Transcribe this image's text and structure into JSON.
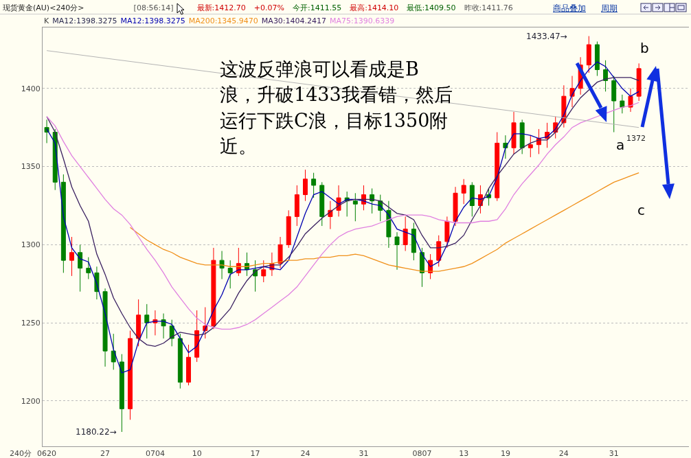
{
  "chart_data": {
    "type": "candlestick",
    "title": "现货黄金(AU)<240分>",
    "categories": [
      "0620",
      null,
      null,
      null,
      null,
      null,
      null,
      "27",
      null,
      null,
      null,
      null,
      null,
      "0704",
      null,
      null,
      null,
      null,
      "10",
      null,
      null,
      null,
      null,
      null,
      null,
      "17",
      null,
      null,
      null,
      null,
      null,
      "24",
      null,
      null,
      null,
      null,
      null,
      null,
      "31",
      null,
      null,
      null,
      null,
      null,
      null,
      "0807",
      null,
      null,
      null,
      null,
      "13",
      null,
      null,
      null,
      null,
      "19",
      null,
      null,
      null,
      null,
      null,
      null,
      "24",
      null,
      null,
      null,
      null,
      null,
      "31",
      null,
      null,
      null
    ],
    "ohlc": [
      [
        1375,
        1380,
        1365,
        1372
      ],
      [
        1372,
        1374,
        1335,
        1340
      ],
      [
        1340,
        1345,
        1282,
        1290
      ],
      [
        1290,
        1305,
        1280,
        1295
      ],
      [
        1295,
        1300,
        1270,
        1285
      ],
      [
        1285,
        1292,
        1278,
        1282
      ],
      [
        1282,
        1286,
        1265,
        1270
      ],
      [
        1270,
        1272,
        1222,
        1232
      ],
      [
        1232,
        1243,
        1220,
        1225
      ],
      [
        1225,
        1230,
        1180.22,
        1195
      ],
      [
        1195,
        1245,
        1188,
        1240
      ],
      [
        1240,
        1265,
        1235,
        1255
      ],
      [
        1255,
        1262,
        1240,
        1250
      ],
      [
        1250,
        1258,
        1242,
        1252
      ],
      [
        1252,
        1256,
        1240,
        1248
      ],
      [
        1248,
        1252,
        1235,
        1240
      ],
      [
        1240,
        1243,
        1208,
        1212
      ],
      [
        1212,
        1236,
        1210,
        1228
      ],
      [
        1228,
        1258,
        1225,
        1245
      ],
      [
        1245,
        1260,
        1240,
        1248
      ],
      [
        1248,
        1298,
        1246,
        1290
      ],
      [
        1290,
        1296,
        1278,
        1285
      ],
      [
        1285,
        1290,
        1272,
        1282
      ],
      [
        1282,
        1298,
        1280,
        1288
      ],
      [
        1288,
        1295,
        1280,
        1284
      ],
      [
        1284,
        1290,
        1270,
        1280
      ],
      [
        1280,
        1290,
        1276,
        1284
      ],
      [
        1284,
        1295,
        1280,
        1288
      ],
      [
        1288,
        1305,
        1285,
        1300
      ],
      [
        1300,
        1322,
        1298,
        1318
      ],
      [
        1318,
        1338,
        1312,
        1332
      ],
      [
        1332,
        1348,
        1328,
        1342
      ],
      [
        1342,
        1346,
        1330,
        1338
      ],
      [
        1338,
        1340,
        1312,
        1318
      ],
      [
        1318,
        1328,
        1310,
        1322
      ],
      [
        1322,
        1338,
        1318,
        1330
      ],
      [
        1330,
        1334,
        1318,
        1328
      ],
      [
        1328,
        1333,
        1315,
        1326
      ],
      [
        1326,
        1338,
        1322,
        1332
      ],
      [
        1332,
        1336,
        1320,
        1328
      ],
      [
        1328,
        1332,
        1315,
        1322
      ],
      [
        1322,
        1328,
        1298,
        1305
      ],
      [
        1305,
        1308,
        1284,
        1300
      ],
      [
        1300,
        1318,
        1296,
        1310
      ],
      [
        1310,
        1314,
        1290,
        1295
      ],
      [
        1295,
        1298,
        1273,
        1282
      ],
      [
        1282,
        1294,
        1278,
        1290
      ],
      [
        1290,
        1306,
        1286,
        1302
      ],
      [
        1302,
        1318,
        1298,
        1315
      ],
      [
        1315,
        1337,
        1312,
        1333
      ],
      [
        1333,
        1342,
        1326,
        1338
      ],
      [
        1338,
        1340,
        1318,
        1325
      ],
      [
        1325,
        1338,
        1320,
        1332
      ],
      [
        1332,
        1336,
        1325,
        1330
      ],
      [
        1330,
        1372,
        1328,
        1365
      ],
      [
        1365,
        1370,
        1355,
        1362
      ],
      [
        1362,
        1385,
        1358,
        1378
      ],
      [
        1378,
        1380,
        1358,
        1362
      ],
      [
        1362,
        1370,
        1356,
        1364
      ],
      [
        1364,
        1374,
        1358,
        1368
      ],
      [
        1368,
        1378,
        1362,
        1372
      ],
      [
        1372,
        1382,
        1368,
        1378
      ],
      [
        1378,
        1402,
        1375,
        1395
      ],
      [
        1395,
        1408,
        1388,
        1400
      ],
      [
        1400,
        1420,
        1396,
        1415
      ],
      [
        1415,
        1433.47,
        1410,
        1428
      ],
      [
        1428,
        1430,
        1408,
        1412
      ],
      [
        1412,
        1418,
        1398,
        1405
      ],
      [
        1405,
        1408,
        1372,
        1392
      ],
      [
        1392,
        1396,
        1384,
        1388
      ],
      [
        1388,
        1400,
        1385,
        1395
      ],
      [
        1395,
        1416,
        1392,
        1412.7
      ]
    ],
    "series": [
      {
        "name": "MA12:1398.3275",
        "type": "line",
        "color": "#0000b0",
        "values": [
          1374,
          1365,
          1318,
          1298,
          1291,
          1289,
          1275,
          1256,
          1233,
          1218,
          1220,
          1238,
          1250,
          1251,
          1251,
          1249,
          1240,
          1231,
          1235,
          1246,
          1258,
          1268,
          1281,
          1284,
          1284,
          1285,
          1286,
          1285,
          1284,
          1290,
          1305,
          1320,
          1332,
          1334,
          1330,
          1326,
          1329,
          1329,
          1328,
          1326,
          1325,
          1319,
          1310,
          1308,
          1306,
          1294,
          1286,
          1289,
          1300,
          1315,
          1324,
          1330,
          1329,
          1331,
          1343,
          1362,
          1371,
          1371,
          1370,
          1368,
          1369,
          1374,
          1383,
          1396,
          1405,
          1412,
          1417,
          1414,
          1407,
          1400,
          1395,
          1398
        ]
      },
      {
        "name": "MA200:1345.9470",
        "type": "line",
        "color": "#f0901a",
        "values": [
          null,
          null,
          null,
          null,
          null,
          null,
          null,
          null,
          null,
          null,
          1311,
          1307,
          1303,
          1300,
          1297,
          1295,
          1292,
          1290,
          1288,
          1287,
          1287,
          1287,
          1286,
          1286,
          1286,
          1287,
          1288,
          1288,
          1289,
          1290,
          1290,
          1291,
          1291,
          1292,
          1292,
          1293,
          1293,
          1294,
          1293,
          1291,
          1289,
          1287,
          1286,
          1285,
          1284,
          1283,
          1283,
          1283,
          1284,
          1285,
          1286,
          1288,
          1291,
          1294,
          1297,
          1301,
          1304,
          1307,
          1310,
          1313,
          1316,
          1319,
          1322,
          1325,
          1328,
          1331,
          1334,
          1337,
          1340,
          1342,
          1344,
          1346
        ]
      },
      {
        "name": "MA30:1404.2417",
        "type": "line",
        "color": "#3a2060",
        "values": [
          1382,
          1372,
          1355,
          1337,
          1325,
          1315,
          1294,
          1281,
          1266,
          1256,
          1247,
          1240,
          1236,
          1235,
          1237,
          1241,
          1244,
          1243,
          1242,
          1243,
          1247,
          1253,
          1259,
          1269,
          1277,
          1283,
          1286,
          1287,
          1287,
          1292,
          1299,
          1307,
          1312,
          1317,
          1321,
          1325,
          1328,
          1329,
          1329,
          1329,
          1328,
          1324,
          1320,
          1319,
          1316,
          1306,
          1298,
          1298,
          1299,
          1301,
          1306,
          1316,
          1325,
          1336,
          1344,
          1351,
          1358,
          1362,
          1365,
          1367,
          1367,
          1372,
          1379,
          1387,
          1394,
          1399,
          1404,
          1406,
          1407,
          1407,
          1407,
          1405
        ]
      },
      {
        "name": "MA75:1390.6339",
        "type": "line",
        "color": "#e080e0",
        "values": [
          1382,
          1376,
          1366,
          1357,
          1350,
          1343,
          1336,
          1329,
          1323,
          1319,
          1313,
          1305,
          1297,
          1290,
          1282,
          1273,
          1266,
          1259,
          1253,
          1249,
          1247,
          1246,
          1246,
          1247,
          1249,
          1252,
          1256,
          1260,
          1264,
          1268,
          1273,
          1280,
          1287,
          1294,
          1300,
          1305,
          1308,
          1310,
          1311,
          1312,
          1314,
          1316,
          1318,
          1319,
          1319,
          1319,
          1318,
          1316,
          1315,
          1314,
          1314,
          1314,
          1315,
          1315,
          1316,
          1323,
          1332,
          1339,
          1345,
          1351,
          1358,
          1364,
          1369,
          1375,
          1378,
          1380,
          1382,
          1384,
          1386,
          1388,
          1389,
          1391
        ]
      },
      {
        "type": "line",
        "color": "#b4b4b4",
        "values": [
          1424.2,
          null,
          null,
          null,
          null,
          null,
          null,
          null,
          null,
          null,
          null,
          null,
          null,
          null,
          null,
          null,
          null,
          null,
          null,
          null,
          null,
          null,
          null,
          null,
          null,
          null,
          null,
          null,
          null,
          null,
          null,
          null,
          null,
          null,
          null,
          null,
          null,
          null,
          null,
          null,
          null,
          null,
          null,
          null,
          null,
          null,
          null,
          null,
          null,
          null,
          null,
          null,
          null,
          null,
          null,
          null,
          null,
          null,
          null,
          null,
          null,
          null,
          null,
          null,
          null,
          null,
          null,
          null,
          null,
          null,
          null,
          1375
        ]
      }
    ],
    "ylim": [
      1171,
      1439
    ],
    "yticks": [
      1200,
      1250,
      1300,
      1350,
      1400
    ],
    "grid": "y",
    "legend": "top",
    "annotations": [
      "[08:56:14]",
      "最新:1412.70",
      "+0.07%",
      "今开:1411.55",
      "最高:1414.10",
      "最低:1409.50",
      "昨收:1411.76",
      "商品叠加",
      "周期",
      "K",
      "MA12:1398.3275",
      "这波反弹浪可以看成是B浪，升破1433我看错，然后运行下跌C浪，目标1350附近。",
      "1433.47→",
      "1180.22→",
      "1372",
      "a",
      "b",
      "c",
      "240分"
    ]
  }
}
